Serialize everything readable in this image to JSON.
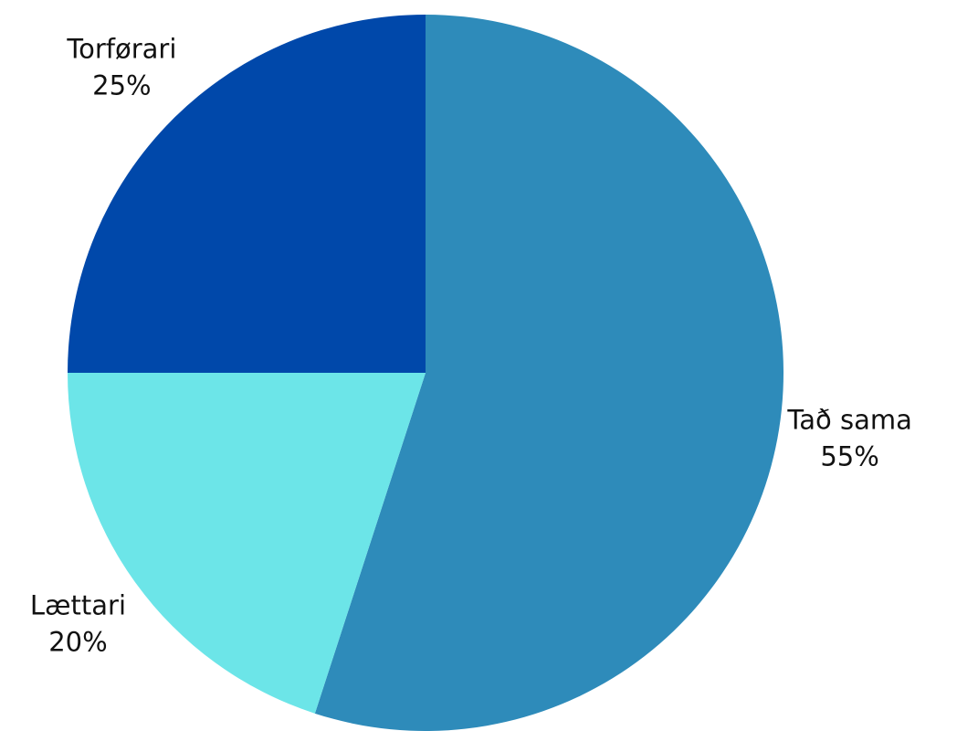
{
  "chart_data": {
    "type": "pie",
    "categories": [
      "Tað sama",
      "Lættari",
      "Torførari"
    ],
    "values": [
      55,
      20,
      25
    ],
    "value_labels": [
      "55%",
      "20%",
      "25%"
    ],
    "colors": [
      "#2e8bba",
      "#6ce5e8",
      "#0048aa"
    ]
  }
}
